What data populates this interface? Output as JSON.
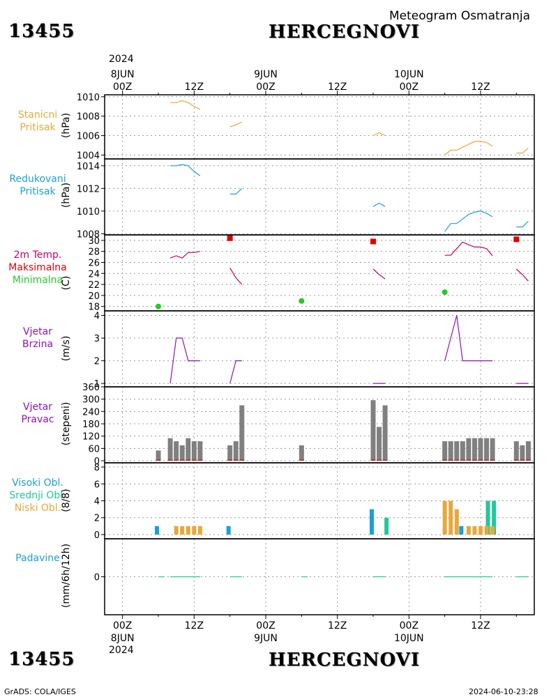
{
  "header": {
    "station_id": "13455",
    "station_name": "HERCEGNOVI",
    "product": "Meteogram Osmatranja",
    "footer_left": "GrADS: COLA/IGES",
    "footer_right": "2024-06-10-23:28"
  },
  "time_axis": {
    "top_year": "2024",
    "bottom_year": "2024",
    "major": [
      {
        "hour": 0,
        "label": "00Z",
        "date": "8JUN"
      },
      {
        "hour": 12,
        "label": "12Z",
        "date": ""
      },
      {
        "hour": 24,
        "label": "00Z",
        "date": "9JUN"
      },
      {
        "hour": 36,
        "label": "12Z",
        "date": ""
      },
      {
        "hour": 48,
        "label": "00Z",
        "date": "10JUN"
      },
      {
        "hour": 60,
        "label": "12Z",
        "date": ""
      }
    ],
    "range_hours": [
      -3,
      69
    ]
  },
  "colors": {
    "orange": "#e8a838",
    "blue": "#1aa0d8",
    "red": "#e00000",
    "green": "#22cc22",
    "magenta": "#c0006a",
    "purple": "#9010b8",
    "gray": "#808080",
    "teal": "#20c89a"
  },
  "panels": {
    "pressure_station": {
      "labels": [
        "Stanicni",
        "Pritisak"
      ],
      "unit": "(hPa)",
      "ticks": [
        "1004",
        "1006",
        "1008",
        "1010"
      ]
    },
    "pressure_reduced": {
      "labels": [
        "Redukovani",
        "Pritisak"
      ],
      "unit": "(hPa)",
      "ticks": [
        "1008",
        "1010",
        "1012",
        "1014"
      ]
    },
    "temperature": {
      "labels": [
        "2m Temp.",
        "Maksimalna",
        "Minimalna"
      ],
      "unit": "(C)",
      "ticks": [
        "18",
        "20",
        "22",
        "24",
        "26",
        "28",
        "30"
      ]
    },
    "wind_speed": {
      "labels": [
        "Vjetar",
        "Brzina"
      ],
      "unit": "(m/s)",
      "ticks": [
        "1",
        "2",
        "3",
        "4"
      ]
    },
    "wind_dir": {
      "labels": [
        "Vjetar",
        "Pravac"
      ],
      "unit": "(stepeni)",
      "ticks": [
        "0",
        "60",
        "120",
        "180",
        "240",
        "300",
        "360"
      ]
    },
    "clouds": {
      "labels": [
        "Visoki Obl.",
        "Srednji Obl.",
        "Niski Obl."
      ],
      "unit": "(8/8)",
      "ticks": [
        "0",
        "2",
        "4",
        "6",
        "8"
      ]
    },
    "precip": {
      "labels": [
        "Padavine"
      ],
      "unit": "(mm/6h/12h)",
      "ticks": [
        "0"
      ]
    }
  },
  "chart_data": [
    {
      "type": "line",
      "name": "pressure_station",
      "ylim": [
        1003.6,
        1010.2
      ],
      "segments": [
        [
          [
            8,
            1009.4
          ],
          [
            9,
            1009.4
          ],
          [
            10,
            1009.6
          ],
          [
            11,
            1009.4
          ],
          [
            12,
            1009.0
          ],
          [
            13,
            1008.7
          ]
        ],
        [
          [
            18,
            1006.9
          ],
          [
            19,
            1007.1
          ],
          [
            20,
            1007.4
          ]
        ],
        [
          [
            42,
            1006.0
          ],
          [
            43,
            1006.3
          ],
          [
            44,
            1006.0
          ]
        ],
        [
          [
            54,
            1004.0
          ],
          [
            55,
            1004.5
          ],
          [
            56,
            1004.5
          ],
          [
            57,
            1004.8
          ],
          [
            58,
            1005.1
          ],
          [
            59,
            1005.4
          ],
          [
            60,
            1005.4
          ],
          [
            61,
            1005.3
          ],
          [
            62,
            1004.9
          ]
        ],
        [
          [
            66,
            1004.2
          ],
          [
            67,
            1004.2
          ],
          [
            68,
            1004.7
          ]
        ]
      ]
    },
    {
      "type": "line",
      "name": "pressure_reduced",
      "ylim": [
        1007.9,
        1014.6
      ],
      "segments": [
        [
          [
            8,
            1014.0
          ],
          [
            9,
            1014.0
          ],
          [
            10,
            1014.1
          ],
          [
            11,
            1014.0
          ],
          [
            12,
            1013.5
          ],
          [
            13,
            1013.1
          ]
        ],
        [
          [
            18,
            1011.5
          ],
          [
            19,
            1011.5
          ],
          [
            20,
            1012.0
          ]
        ],
        [
          [
            42,
            1010.4
          ],
          [
            43,
            1010.7
          ],
          [
            44,
            1010.4
          ]
        ],
        [
          [
            54,
            1008.2
          ],
          [
            55,
            1008.9
          ],
          [
            56,
            1008.9
          ],
          [
            57,
            1009.3
          ],
          [
            58,
            1009.7
          ],
          [
            59,
            1009.9
          ],
          [
            60,
            1010.0
          ],
          [
            61,
            1009.8
          ],
          [
            62,
            1009.5
          ]
        ],
        [
          [
            66,
            1008.6
          ],
          [
            67,
            1008.6
          ],
          [
            68,
            1009.1
          ]
        ]
      ]
    },
    {
      "type": "line",
      "name": "temperature",
      "ylim": [
        17.2,
        31.0
      ],
      "segments": [
        [
          [
            8,
            26.8
          ],
          [
            9,
            27.2
          ],
          [
            10,
            26.8
          ],
          [
            11,
            27.8
          ],
          [
            12,
            27.8
          ],
          [
            13,
            28.0
          ]
        ],
        [
          [
            18,
            25.0
          ],
          [
            19,
            23.2
          ],
          [
            20,
            22.0
          ]
        ],
        [
          [
            42,
            24.8
          ],
          [
            43,
            23.8
          ],
          [
            44,
            23.0
          ]
        ],
        [
          [
            54,
            27.3
          ],
          [
            55,
            27.3
          ],
          [
            56,
            28.5
          ],
          [
            57,
            29.7
          ],
          [
            58,
            29.2
          ],
          [
            59,
            28.8
          ],
          [
            60,
            28.8
          ],
          [
            61,
            28.5
          ],
          [
            62,
            27.2
          ]
        ],
        [
          [
            66,
            24.8
          ],
          [
            67,
            23.8
          ],
          [
            68,
            22.6
          ]
        ]
      ],
      "max": [
        [
          18,
          30.4
        ],
        [
          42,
          29.8
        ],
        [
          66,
          30.2
        ]
      ],
      "min": [
        [
          6,
          18.0
        ],
        [
          30,
          19.0
        ],
        [
          54,
          20.6
        ]
      ]
    },
    {
      "type": "line",
      "name": "wind_speed",
      "ylim": [
        0.85,
        4.2
      ],
      "segments": [
        [
          [
            8,
            1
          ],
          [
            9,
            3
          ],
          [
            10,
            3
          ],
          [
            11,
            2
          ],
          [
            12,
            2
          ],
          [
            13,
            2
          ]
        ],
        [
          [
            18,
            1
          ],
          [
            19,
            2
          ],
          [
            20,
            2
          ]
        ],
        [
          [
            42,
            1
          ],
          [
            43,
            1
          ],
          [
            44,
            1
          ]
        ],
        [
          [
            54,
            2
          ],
          [
            55,
            3
          ],
          [
            56,
            4
          ],
          [
            57,
            2
          ],
          [
            58,
            2
          ],
          [
            59,
            2
          ],
          [
            60,
            2
          ],
          [
            61,
            2
          ],
          [
            62,
            2
          ]
        ],
        [
          [
            66,
            1
          ],
          [
            67,
            1
          ],
          [
            68,
            1
          ]
        ]
      ]
    },
    {
      "type": "bar",
      "name": "wind_dir",
      "ylim": [
        -10,
        360
      ],
      "x": [
        6,
        8,
        9,
        10,
        11,
        12,
        13,
        18,
        19,
        20,
        30,
        42,
        43,
        44,
        54,
        55,
        56,
        57,
        58,
        59,
        60,
        61,
        62,
        66,
        67,
        68
      ],
      "values": [
        50,
        110,
        95,
        75,
        110,
        95,
        95,
        75,
        95,
        270,
        75,
        295,
        165,
        270,
        95,
        95,
        95,
        95,
        110,
        110,
        110,
        110,
        110,
        95,
        75,
        95
      ]
    },
    {
      "type": "bar",
      "name": "clouds",
      "ylim": [
        -0.5,
        8.5
      ],
      "series": [
        {
          "name": "Visoki Obl.",
          "color": "#1aa0d8",
          "x": [
            6,
            18,
            42,
            57
          ],
          "values": [
            1,
            1,
            3,
            1
          ]
        },
        {
          "name": "Srednji Obl.",
          "color": "#20c89a",
          "x": [
            44,
            61,
            62
          ],
          "values": [
            2,
            4,
            4
          ]
        },
        {
          "name": "Niski Obl.",
          "color": "#e8a838",
          "x": [
            9,
            10,
            11,
            12,
            13,
            54,
            55,
            56,
            58,
            59,
            60,
            61,
            62
          ],
          "values": [
            1,
            1,
            1,
            1,
            1,
            4,
            4,
            3,
            1,
            1,
            1,
            1,
            1
          ]
        }
      ]
    },
    {
      "type": "line",
      "name": "precip",
      "ylim": [
        -4,
        4
      ],
      "segments": [
        [
          [
            6,
            0
          ],
          [
            7,
            0
          ]
        ],
        [
          [
            8,
            0
          ],
          [
            13,
            0
          ]
        ],
        [
          [
            18,
            0
          ],
          [
            20,
            0
          ]
        ],
        [
          [
            30,
            0
          ],
          [
            31,
            0
          ]
        ],
        [
          [
            42,
            0
          ],
          [
            44,
            0
          ]
        ],
        [
          [
            54,
            0
          ],
          [
            62,
            0
          ]
        ],
        [
          [
            66,
            0
          ],
          [
            68,
            0
          ]
        ]
      ]
    }
  ]
}
